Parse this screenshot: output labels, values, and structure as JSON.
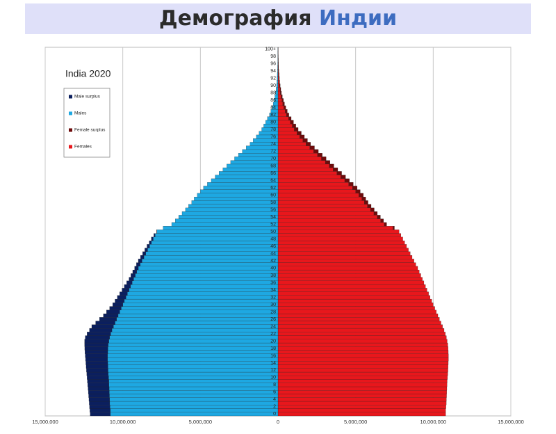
{
  "header": {
    "title": "Демография",
    "title_highlight": "Индии"
  },
  "chart_data": {
    "type": "pyramid",
    "title": "India 2020",
    "categories": [
      "0",
      null,
      "2",
      null,
      "4",
      null,
      "6",
      null,
      "8",
      null,
      "10",
      null,
      "12",
      null,
      "14",
      null,
      "16",
      null,
      "18",
      null,
      "20",
      null,
      "22",
      null,
      "24",
      null,
      "26",
      null,
      "28",
      null,
      "30",
      null,
      "32",
      null,
      "34",
      null,
      "36",
      null,
      "38",
      null,
      "40",
      null,
      "42",
      null,
      "44",
      null,
      "46",
      null,
      "48",
      null,
      "50",
      null,
      "52",
      null,
      "54",
      null,
      "56",
      null,
      "58",
      null,
      "60",
      null,
      "62",
      null,
      "64",
      null,
      "66",
      null,
      "68",
      null,
      "70",
      null,
      "72",
      null,
      "74",
      null,
      "76",
      null,
      "78",
      null,
      "80",
      null,
      "82",
      null,
      "84",
      null,
      "86",
      null,
      "88",
      null,
      "90",
      null,
      "92",
      null,
      "94",
      null,
      "96",
      null,
      "98",
      null,
      "100+"
    ],
    "series": [
      {
        "name": "Male surplus",
        "color": "#0b1f5e",
        "values": [
          -1300000,
          -1320000,
          -1320000,
          -1320000,
          -1330000,
          -1340000,
          -1350000,
          -1360000,
          -1370000,
          -1380000,
          -1380000,
          -1380000,
          -1390000,
          -1400000,
          -1410000,
          -1420000,
          -1440000,
          -1470000,
          -1490000,
          -1520000,
          -1560000,
          -1570000,
          -1520000,
          -1450000,
          -1400000,
          -1250000,
          -1100000,
          -950000,
          -850000,
          -750000,
          -650000,
          -600000,
          -550000,
          -500000,
          -450000,
          -400000,
          -350000,
          -300000,
          -280000,
          -260000,
          -240000,
          -240000,
          -240000,
          -220000,
          -200000,
          -180000,
          -160000,
          -140000,
          -120000,
          -80000,
          -20000,
          0,
          0,
          0,
          0,
          0,
          0,
          0,
          0,
          0,
          0,
          0,
          0,
          0,
          0,
          0,
          0,
          0,
          0,
          0,
          0,
          0,
          0,
          0,
          0,
          0,
          0,
          0,
          0,
          0,
          0,
          0,
          0,
          0,
          0,
          0,
          0,
          0,
          0,
          0,
          0,
          0,
          0,
          0,
          0,
          0,
          0,
          0,
          0,
          0,
          0
        ]
      },
      {
        "name": "Males",
        "color": "#1ea8e2",
        "values": [
          -10800000,
          -10800000,
          -10820000,
          -10840000,
          -10850000,
          -10860000,
          -10870000,
          -10880000,
          -10890000,
          -10900000,
          -10920000,
          -10940000,
          -10950000,
          -10960000,
          -10970000,
          -10980000,
          -10980000,
          -10970000,
          -10960000,
          -10940000,
          -10900000,
          -10850000,
          -10780000,
          -10700000,
          -10600000,
          -10500000,
          -10400000,
          -10300000,
          -10200000,
          -10100000,
          -10000000,
          -9900000,
          -9800000,
          -9700000,
          -9600000,
          -9500000,
          -9400000,
          -9300000,
          -9200000,
          -9100000,
          -9000000,
          -8880000,
          -8760000,
          -8640000,
          -8520000,
          -8400000,
          -8280000,
          -8160000,
          -8040000,
          -7920000,
          -7800000,
          -7400000,
          -6850000,
          -6620000,
          -6400000,
          -6180000,
          -5960000,
          -5760000,
          -5560000,
          -5400000,
          -5200000,
          -5000000,
          -4800000,
          -4550000,
          -4300000,
          -4050000,
          -3800000,
          -3550000,
          -3300000,
          -3050000,
          -2800000,
          -2550000,
          -2300000,
          -2050000,
          -1800000,
          -1600000,
          -1400000,
          -1220000,
          -1050000,
          -920000,
          -800000,
          -680000,
          -550000,
          -460000,
          -380000,
          -310000,
          -250000,
          -200000,
          -150000,
          -120000,
          -90000,
          -70000,
          -60000,
          -45000,
          -30000,
          -25000,
          -20000,
          -15000,
          -10000,
          -10000,
          -5000
        ]
      },
      {
        "name": "Female surplus",
        "color": "#6e0b0b",
        "values": [
          0,
          0,
          0,
          0,
          0,
          0,
          0,
          0,
          0,
          0,
          0,
          0,
          0,
          0,
          0,
          0,
          0,
          0,
          0,
          0,
          0,
          0,
          0,
          0,
          0,
          0,
          0,
          0,
          0,
          0,
          0,
          0,
          0,
          0,
          0,
          0,
          0,
          0,
          0,
          0,
          0,
          0,
          0,
          0,
          0,
          0,
          0,
          0,
          0,
          0,
          0,
          100000,
          150000,
          180000,
          200000,
          220000,
          240000,
          240000,
          240000,
          250000,
          300000,
          300000,
          300000,
          300000,
          300000,
          300000,
          300000,
          300000,
          300000,
          300000,
          300000,
          300000,
          300000,
          300000,
          300000,
          300000,
          300000,
          280000,
          250000,
          230000,
          200000,
          170000,
          150000,
          140000,
          120000,
          110000,
          100000,
          80000,
          70000,
          60000,
          50000,
          40000,
          30000,
          25000,
          20000,
          15000,
          10000,
          10000,
          10000,
          5000,
          5000
        ]
      },
      {
        "name": "Females",
        "color": "#e8171c",
        "values": [
          10800000,
          10800000,
          10820000,
          10840000,
          10850000,
          10860000,
          10870000,
          10880000,
          10890000,
          10900000,
          10920000,
          10940000,
          10950000,
          10960000,
          10970000,
          10980000,
          10980000,
          10970000,
          10960000,
          10940000,
          10900000,
          10850000,
          10780000,
          10700000,
          10600000,
          10500000,
          10400000,
          10300000,
          10200000,
          10100000,
          10000000,
          9900000,
          9800000,
          9700000,
          9600000,
          9500000,
          9400000,
          9300000,
          9200000,
          9100000,
          9000000,
          8880000,
          8760000,
          8640000,
          8520000,
          8400000,
          8280000,
          8160000,
          8040000,
          7920000,
          7800000,
          7400000,
          6850000,
          6620000,
          6400000,
          6180000,
          5960000,
          5760000,
          5560000,
          5400000,
          5200000,
          5000000,
          4800000,
          4550000,
          4300000,
          4050000,
          3800000,
          3550000,
          3300000,
          3050000,
          2800000,
          2550000,
          2300000,
          2050000,
          1800000,
          1600000,
          1400000,
          1220000,
          1050000,
          920000,
          800000,
          680000,
          550000,
          460000,
          380000,
          310000,
          250000,
          200000,
          150000,
          120000,
          90000,
          70000,
          60000,
          45000,
          30000,
          25000,
          20000,
          15000,
          10000,
          10000,
          5000
        ]
      }
    ],
    "xlim": [
      -15000000,
      15000000
    ],
    "xticks": [
      {
        "value": -15000000,
        "label": "15,000,000"
      },
      {
        "value": -10000000,
        "label": "10,000,000"
      },
      {
        "value": -5000000,
        "label": "5,000,000"
      },
      0,
      {
        "value": 5000000,
        "label": "5,000,000"
      },
      {
        "value": 10000000,
        "label": "10,000,000"
      },
      {
        "value": 15000000,
        "label": "15,000,000"
      }
    ],
    "grid": true
  }
}
